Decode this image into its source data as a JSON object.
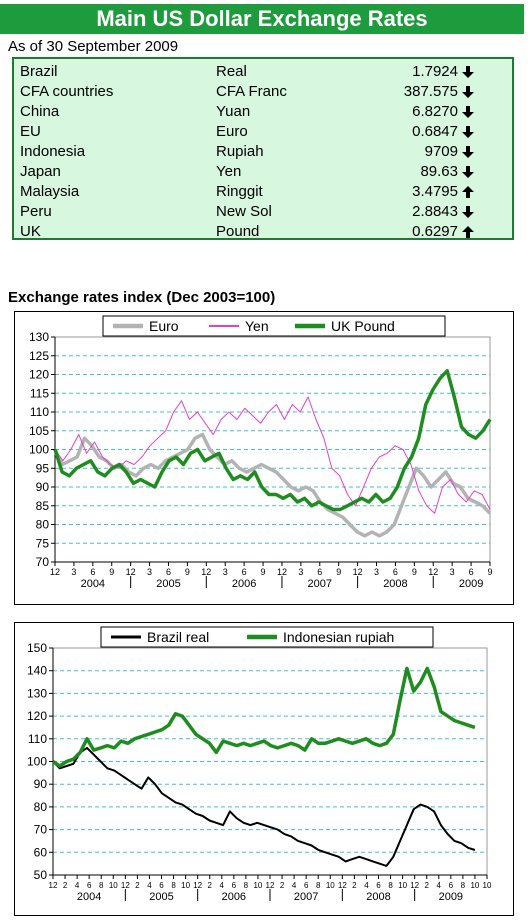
{
  "header": {
    "title": "Main US Dollar Exchange Rates",
    "as_of": "As of 30 September 2009"
  },
  "rates": [
    {
      "country": "Brazil",
      "currency": "Real",
      "value": "1.7924",
      "trend": "down"
    },
    {
      "country": "CFA countries",
      "currency": "CFA Franc",
      "value": "387.575",
      "trend": "down"
    },
    {
      "country": "China",
      "currency": "Yuan",
      "value": "6.8270",
      "trend": "down"
    },
    {
      "country": "EU",
      "currency": "Euro",
      "value": "0.6847",
      "trend": "down"
    },
    {
      "country": "Indonesia",
      "currency": "Rupiah",
      "value": "9709",
      "trend": "down"
    },
    {
      "country": "Japan",
      "currency": "Yen",
      "value": "89.63",
      "trend": "down"
    },
    {
      "country": "Malaysia",
      "currency": "Ringgit",
      "value": "3.4795",
      "trend": "up"
    },
    {
      "country": "Peru",
      "currency": "New Sol",
      "value": "2.8843",
      "trend": "down"
    },
    {
      "country": "UK",
      "currency": "Pound",
      "value": "0.6297",
      "trend": "up"
    }
  ],
  "section_title": "Exchange rates index (Dec 2003=100)",
  "colors": {
    "banner": "#1e9b3c",
    "euro": "#b3b3b3",
    "yen": "#e040d0",
    "pound": "#1e8c1e",
    "real": "#000000",
    "rupiah": "#1e8c1e"
  },
  "chart_data": [
    {
      "type": "line",
      "title": "",
      "x_start": "2003-12",
      "ylim": [
        70,
        130
      ],
      "yticks": [
        70,
        75,
        80,
        85,
        90,
        95,
        100,
        105,
        110,
        115,
        120,
        125,
        130
      ],
      "tick_month_labels": [
        "12",
        "3",
        "6",
        "9",
        "12",
        "3",
        "6",
        "9",
        "12",
        "3",
        "6",
        "9",
        "12",
        "3",
        "6",
        "9",
        "12",
        "3",
        "6",
        "9",
        "12",
        "3",
        "6",
        "9"
      ],
      "year_labels": [
        "2004",
        "2005",
        "2006",
        "2007",
        "2008",
        "2009"
      ],
      "legend_position": "top",
      "series": [
        {
          "name": "Euro",
          "values": [
            100,
            96,
            97,
            98,
            103,
            101,
            98,
            97,
            95,
            96,
            94,
            93,
            95,
            96,
            95,
            97,
            98,
            99,
            100,
            103,
            104,
            100,
            98,
            96,
            97,
            95,
            94,
            95,
            96,
            95,
            94,
            92,
            90,
            89,
            90,
            89,
            86,
            84,
            83,
            82,
            80,
            78,
            77,
            78,
            77,
            78,
            80,
            85,
            90,
            95,
            93,
            90,
            92,
            94,
            91,
            90,
            87,
            86,
            85,
            83
          ]
        },
        {
          "name": "Yen",
          "values": [
            100,
            97,
            100,
            104,
            99,
            102,
            98,
            96,
            95,
            97,
            96,
            98,
            101,
            103,
            105,
            110,
            113,
            108,
            110,
            107,
            104,
            108,
            110,
            108,
            111,
            109,
            107,
            110,
            112,
            108,
            112,
            110,
            114,
            108,
            103,
            95,
            93,
            88,
            85,
            90,
            95,
            98,
            99,
            101,
            100,
            96,
            89,
            85,
            83,
            90,
            92,
            88,
            86,
            89,
            88,
            84
          ]
        },
        {
          "name": "UK Pound",
          "values": [
            100,
            94,
            93,
            95,
            96,
            97,
            94,
            93,
            95,
            96,
            94,
            91,
            92,
            91,
            90,
            94,
            97,
            98,
            96,
            99,
            100,
            97,
            98,
            99,
            95,
            92,
            93,
            92,
            94,
            90,
            88,
            88,
            87,
            88,
            86,
            87,
            85,
            86,
            85,
            84,
            84,
            85,
            86,
            87,
            86,
            88,
            86,
            87,
            90,
            95,
            98,
            103,
            112,
            116,
            119,
            121,
            114,
            106,
            104,
            103,
            105,
            108
          ]
        }
      ]
    },
    {
      "type": "line",
      "title": "",
      "x_start": "2003-12",
      "ylim": [
        50,
        150
      ],
      "yticks": [
        50,
        60,
        70,
        80,
        90,
        100,
        110,
        120,
        130,
        140,
        150
      ],
      "tick_month_labels": [
        "12",
        "2",
        "4",
        "6",
        "8",
        "10",
        "12",
        "2",
        "4",
        "6",
        "8",
        "10",
        "12",
        "2",
        "4",
        "6",
        "8",
        "10",
        "12",
        "2",
        "4",
        "6",
        "8",
        "10",
        "12",
        "2",
        "4",
        "6",
        "8",
        "10",
        "12",
        "2",
        "4",
        "6",
        "8",
        "10",
        "10"
      ],
      "year_labels": [
        "2004",
        "2005",
        "2006",
        "2007",
        "2008",
        "2009"
      ],
      "legend_position": "top",
      "series": [
        {
          "name": "Brazil real",
          "values": [
            100,
            97,
            98,
            99,
            104,
            106,
            103,
            100,
            97,
            96,
            94,
            92,
            90,
            88,
            93,
            90,
            86,
            84,
            82,
            81,
            79,
            77,
            76,
            74,
            73,
            72,
            78,
            75,
            73,
            72,
            73,
            72,
            71,
            70,
            68,
            67,
            65,
            64,
            63,
            61,
            60,
            59,
            58,
            56,
            57,
            58,
            57,
            56,
            55,
            54,
            58,
            65,
            72,
            79,
            81,
            80,
            78,
            72,
            68,
            65,
            64,
            62,
            61
          ]
        },
        {
          "name": "Indonesian rupiah",
          "values": [
            100,
            98,
            100,
            101,
            104,
            110,
            105,
            106,
            107,
            106,
            109,
            108,
            110,
            111,
            112,
            113,
            114,
            116,
            121,
            120,
            116,
            112,
            110,
            108,
            104,
            109,
            108,
            107,
            108,
            107,
            108,
            109,
            107,
            106,
            107,
            108,
            107,
            105,
            110,
            108,
            108,
            109,
            110,
            109,
            108,
            109,
            110,
            108,
            107,
            108,
            112,
            127,
            141,
            131,
            135,
            141,
            133,
            122,
            120,
            118,
            117,
            116,
            115
          ]
        }
      ]
    }
  ]
}
